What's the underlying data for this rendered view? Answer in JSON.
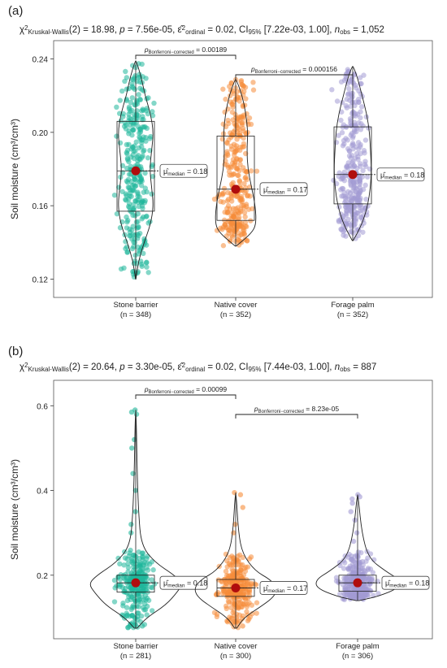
{
  "chart_data": [
    {
      "panel_label": "(a)",
      "type": "violin-box-scatter",
      "stats": {
        "test_prefix": "χ",
        "test_sub": "Kruskal-Wallis",
        "test_value": "(2) = 18.98,",
        "p_label": "p",
        "p_value": "= 7.56e-05,",
        "effect_prefix": "ε̂",
        "effect_sub": "ordinal",
        "effect_value": "= 0.02,",
        "ci_prefix": "CI",
        "ci_sub": "95%",
        "ci_value": "[7.22e-03, 1.00],",
        "n_label": "n",
        "n_sub": "obs",
        "n_value": "= 1,052"
      },
      "ylabel": "Soil moisture (cm³/cm³)",
      "ylim": [
        0.11,
        0.25
      ],
      "yticks": [
        0.12,
        0.16,
        0.2,
        0.24
      ],
      "ytick_labels": [
        "0.12",
        "0.16",
        "0.20",
        "0.24"
      ],
      "categories": [
        "Stone barrier",
        "Native cover",
        "Forage palm"
      ],
      "n_labels": [
        "(n = 348)",
        "(n = 352)",
        "(n = 352)"
      ],
      "colors": [
        "#1fb69a",
        "#f68d3b",
        "#a29ad3"
      ],
      "groups": [
        {
          "min": 0.12,
          "q1": 0.157,
          "median": 0.179,
          "q3": 0.206,
          "max": 0.239,
          "n": 348,
          "median_label": "= 0.18",
          "violin": [
            [
              0.12,
              0.002
            ],
            [
              0.13,
              0.03
            ],
            [
              0.14,
              0.09
            ],
            [
              0.15,
              0.16
            ],
            [
              0.16,
              0.19
            ],
            [
              0.17,
              0.17
            ],
            [
              0.18,
              0.15
            ],
            [
              0.19,
              0.17
            ],
            [
              0.2,
              0.19
            ],
            [
              0.21,
              0.16
            ],
            [
              0.22,
              0.1
            ],
            [
              0.23,
              0.06
            ],
            [
              0.239,
              0.005
            ]
          ]
        },
        {
          "min": 0.138,
          "q1": 0.152,
          "median": 0.169,
          "q3": 0.198,
          "max": 0.229,
          "n": 352,
          "median_label": "= 0.17",
          "violin": [
            [
              0.138,
              0.005
            ],
            [
              0.145,
              0.17
            ],
            [
              0.15,
              0.22
            ],
            [
              0.16,
              0.21
            ],
            [
              0.17,
              0.17
            ],
            [
              0.18,
              0.13
            ],
            [
              0.19,
              0.12
            ],
            [
              0.2,
              0.13
            ],
            [
              0.21,
              0.11
            ],
            [
              0.22,
              0.07
            ],
            [
              0.229,
              0.005
            ]
          ]
        },
        {
          "min": 0.141,
          "q1": 0.161,
          "median": 0.177,
          "q3": 0.203,
          "max": 0.236,
          "n": 352,
          "median_label": "= 0.18",
          "violin": [
            [
              0.141,
              0.005
            ],
            [
              0.15,
              0.1
            ],
            [
              0.16,
              0.16
            ],
            [
              0.17,
              0.19
            ],
            [
              0.18,
              0.2
            ],
            [
              0.19,
              0.19
            ],
            [
              0.2,
              0.18
            ],
            [
              0.21,
              0.15
            ],
            [
              0.22,
              0.1
            ],
            [
              0.23,
              0.05
            ],
            [
              0.236,
              0.005
            ]
          ]
        }
      ],
      "comparisons": [
        {
          "from": 0,
          "to": 1,
          "p_label": "p",
          "p_sub": "Bonferroni−corrected",
          "p_value": "= 0.00189"
        },
        {
          "from": 1,
          "to": 2,
          "p_label": "p",
          "p_sub": "Bonferroni−corrected",
          "p_value": "= 0.000156"
        }
      ],
      "median_symbol": "μ̂",
      "median_sub": "median"
    },
    {
      "panel_label": "(b)",
      "type": "violin-box-scatter",
      "stats": {
        "test_prefix": "χ",
        "test_sub": "Kruskal-Wallis",
        "test_value": "(2) = 20.64,",
        "p_label": "p",
        "p_value": "= 3.30e-05,",
        "effect_prefix": "ε̂",
        "effect_sub": "ordinal",
        "effect_value": "= 0.02,",
        "ci_prefix": "CI",
        "ci_sub": "95%",
        "ci_value": "[7.44e-03, 1.00],",
        "n_label": "n",
        "n_sub": "obs",
        "n_value": "= 887"
      },
      "ylabel": "Soil moisture (cm³/cm³)",
      "ylim": [
        0.05,
        0.66
      ],
      "yticks": [
        0.2,
        0.4,
        0.6
      ],
      "ytick_labels": [
        "0.2",
        "0.4",
        "0.6"
      ],
      "categories": [
        "Stone barrier",
        "Native cover",
        "Forage palm"
      ],
      "n_labels": [
        "(n = 281)",
        "(n = 300)",
        "(n = 306)"
      ],
      "colors": [
        "#1fb69a",
        "#f68d3b",
        "#a29ad3"
      ],
      "groups": [
        {
          "min": 0.075,
          "q1": 0.16,
          "median": 0.182,
          "q3": 0.2,
          "max": 0.59,
          "n": 281,
          "median_label": "= 0.18",
          "violin": [
            [
              0.075,
              0.01
            ],
            [
              0.1,
              0.08
            ],
            [
              0.13,
              0.22
            ],
            [
              0.16,
              0.3
            ],
            [
              0.18,
              0.34
            ],
            [
              0.2,
              0.28
            ],
            [
              0.23,
              0.14
            ],
            [
              0.27,
              0.04
            ],
            [
              0.35,
              0.02
            ],
            [
              0.45,
              0.01
            ],
            [
              0.59,
              0.003
            ]
          ],
          "outliers": [
            0.3,
            0.32,
            0.35,
            0.4,
            0.44,
            0.5,
            0.52,
            0.58,
            0.585,
            0.59,
            0.08
          ]
        },
        {
          "min": 0.075,
          "q1": 0.15,
          "median": 0.17,
          "q3": 0.19,
          "max": 0.395,
          "n": 300,
          "median_label": "= 0.17",
          "violin": [
            [
              0.075,
              0.008
            ],
            [
              0.1,
              0.06
            ],
            [
              0.13,
              0.2
            ],
            [
              0.15,
              0.28
            ],
            [
              0.17,
              0.3
            ],
            [
              0.19,
              0.25
            ],
            [
              0.21,
              0.14
            ],
            [
              0.25,
              0.05
            ],
            [
              0.3,
              0.02
            ],
            [
              0.395,
              0.003
            ]
          ],
          "outliers": [
            0.3,
            0.32,
            0.36,
            0.39,
            0.395,
            0.08
          ]
        },
        {
          "min": 0.14,
          "q1": 0.162,
          "median": 0.182,
          "q3": 0.2,
          "max": 0.39,
          "n": 306,
          "median_label": "= 0.18",
          "violin": [
            [
              0.14,
              0.01
            ],
            [
              0.15,
              0.15
            ],
            [
              0.17,
              0.3
            ],
            [
              0.19,
              0.3
            ],
            [
              0.21,
              0.2
            ],
            [
              0.24,
              0.08
            ],
            [
              0.3,
              0.03
            ],
            [
              0.39,
              0.003
            ]
          ],
          "outliers": [
            0.28,
            0.3,
            0.33,
            0.35,
            0.37,
            0.38,
            0.385,
            0.39
          ]
        }
      ],
      "comparisons": [
        {
          "from": 0,
          "to": 1,
          "p_label": "p",
          "p_sub": "Bonferroni−corrected",
          "p_value": "= 0.00099"
        },
        {
          "from": 1,
          "to": 2,
          "p_label": "p",
          "p_sub": "Bonferroni−corrected",
          "p_value": "= 8.23e-05"
        }
      ],
      "median_symbol": "μ̂",
      "median_sub": "median"
    }
  ]
}
